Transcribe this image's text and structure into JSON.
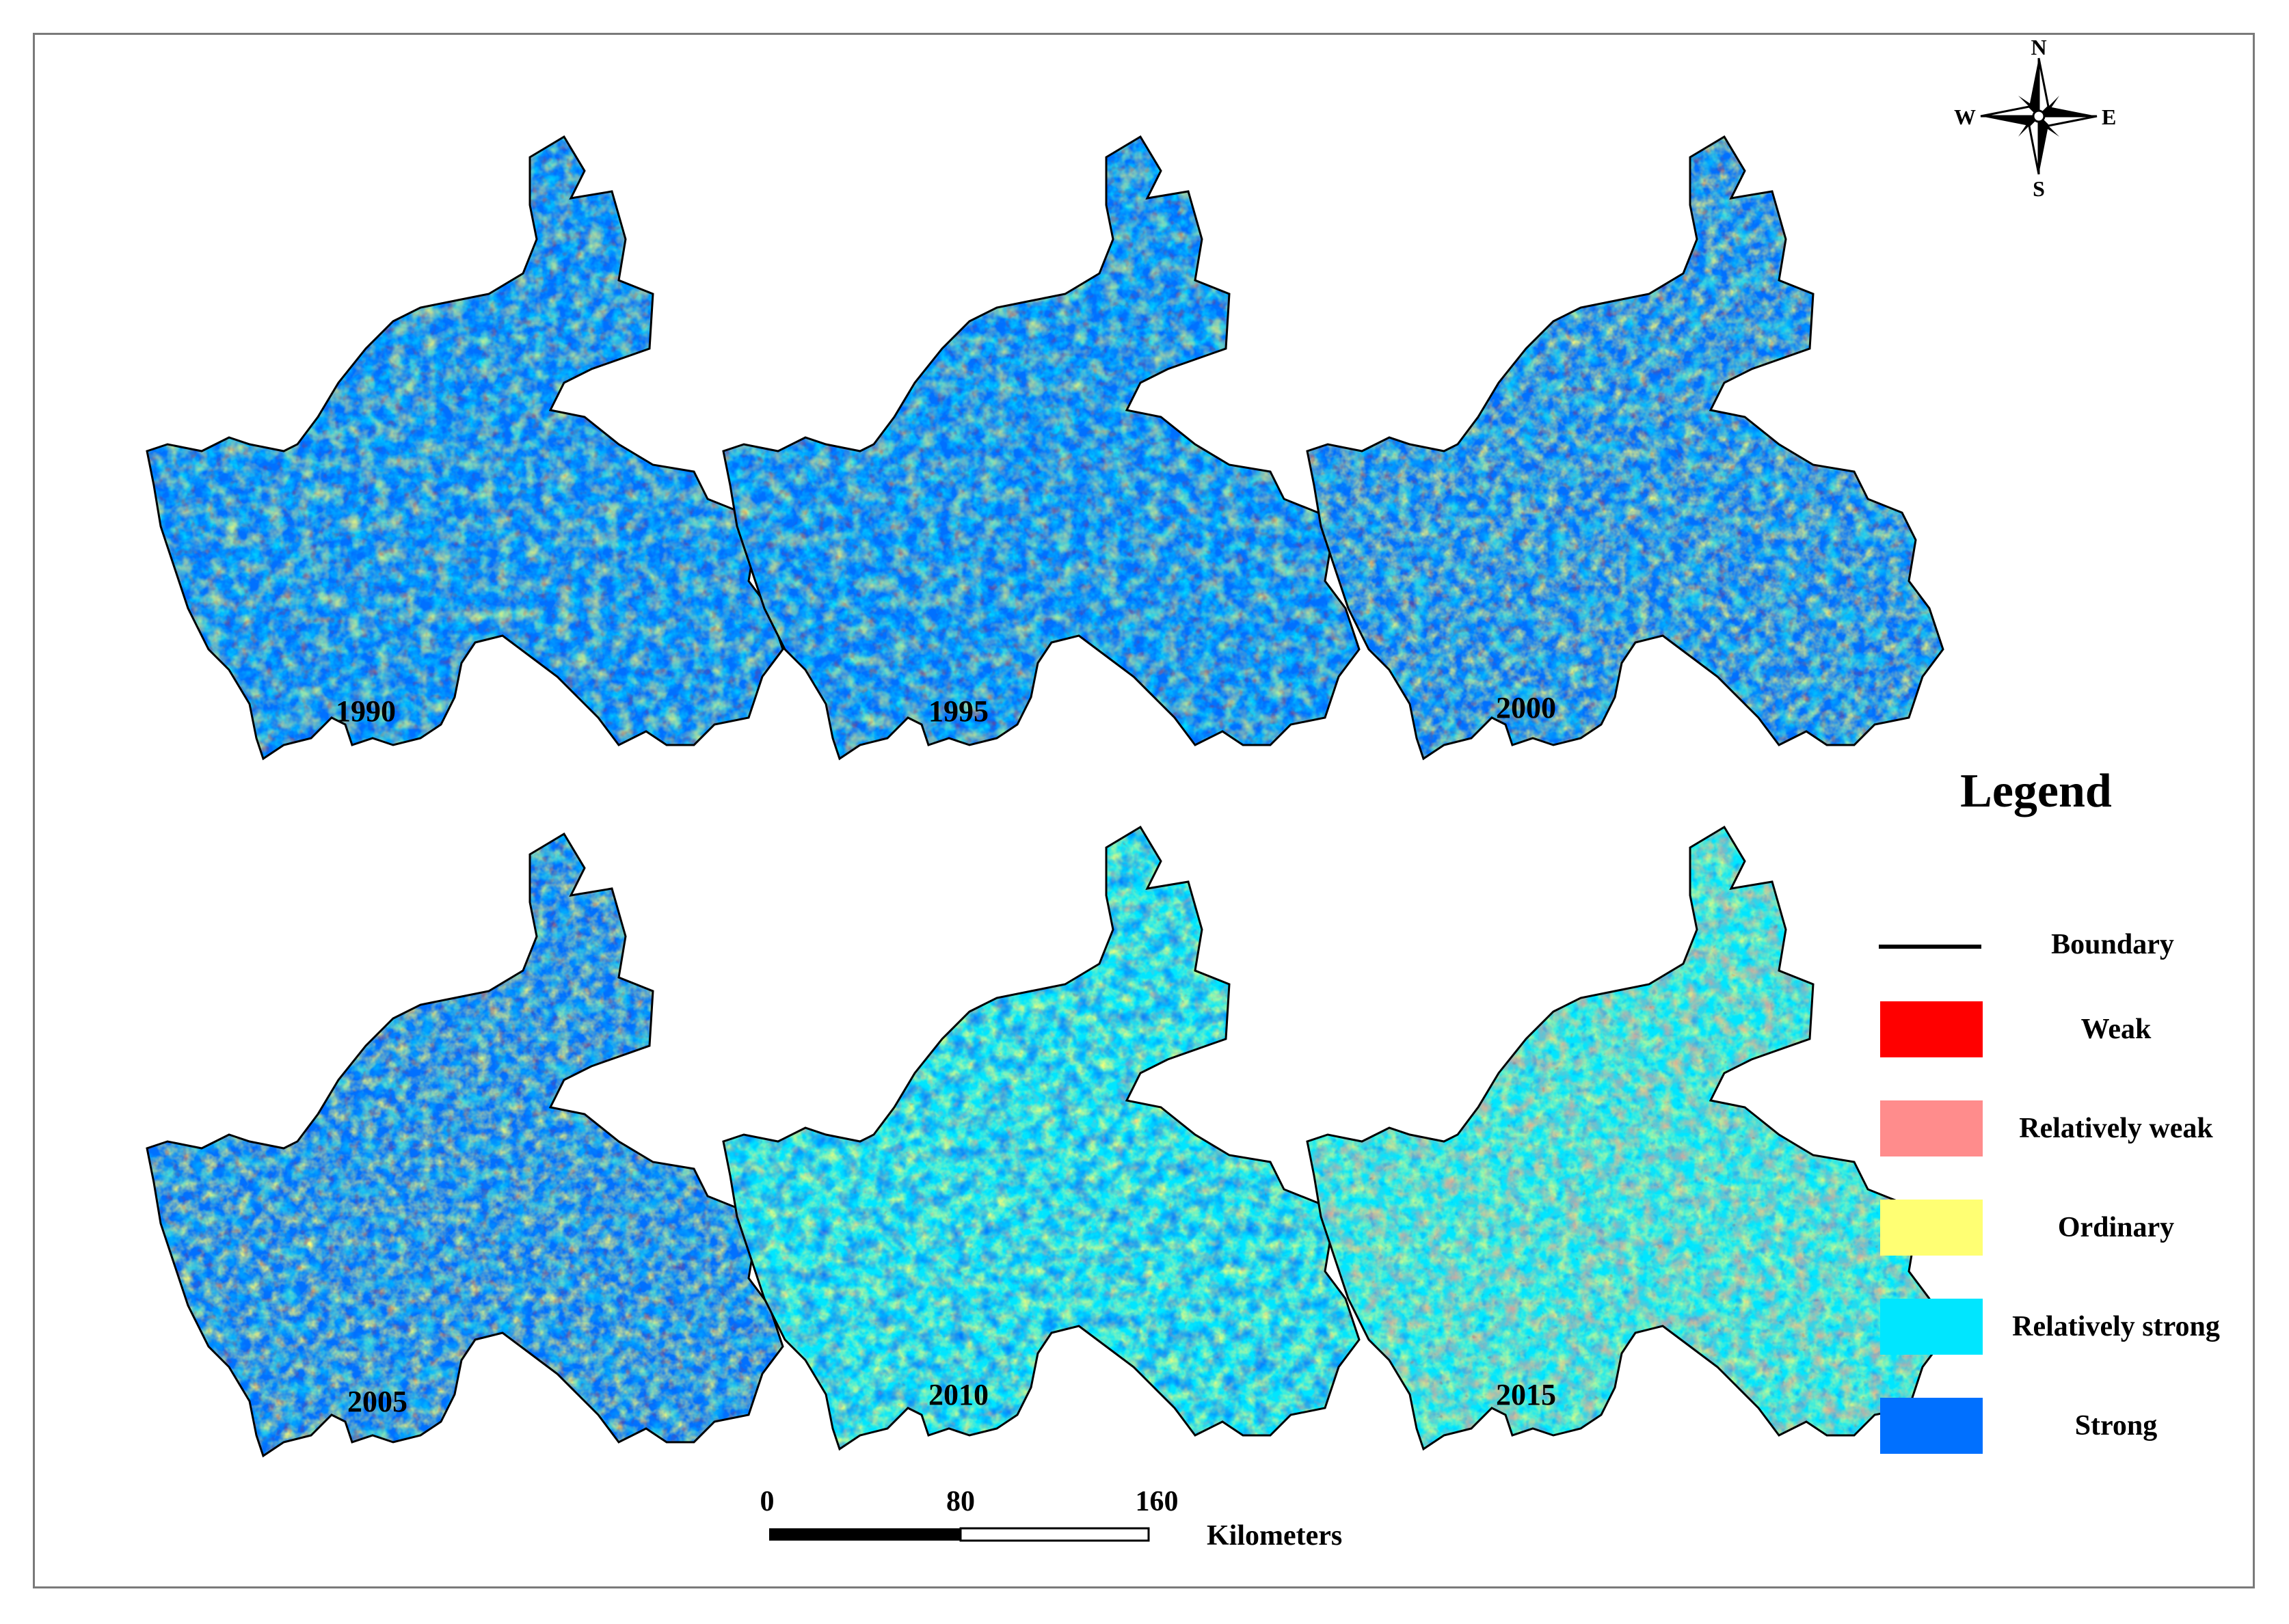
{
  "maps": [
    {
      "year": "1990",
      "palette": {
        "strong": 0.55,
        "rel_strong": 0.22,
        "ordinary": 0.21,
        "rel_weak": 0.0,
        "weak": 0.02
      }
    },
    {
      "year": "1995",
      "palette": {
        "strong": 0.48,
        "rel_strong": 0.32,
        "ordinary": 0.18,
        "rel_weak": 0.0,
        "weak": 0.02
      }
    },
    {
      "year": "2000",
      "palette": {
        "strong": 0.55,
        "rel_strong": 0.18,
        "ordinary": 0.25,
        "rel_weak": 0.0,
        "weak": 0.02
      }
    },
    {
      "year": "2005",
      "palette": {
        "strong": 0.55,
        "rel_strong": 0.13,
        "ordinary": 0.3,
        "rel_weak": 0.0,
        "weak": 0.02
      }
    },
    {
      "year": "2010",
      "palette": {
        "strong": 0.28,
        "rel_strong": 0.32,
        "ordinary": 0.3,
        "rel_weak": 0.08,
        "weak": 0.02
      }
    },
    {
      "year": "2015",
      "palette": {
        "strong": 0.1,
        "rel_strong": 0.5,
        "ordinary": 0.22,
        "rel_weak": 0.15,
        "weak": 0.03
      }
    }
  ],
  "legend": {
    "title": "Legend",
    "boundary_label": "Boundary",
    "items": [
      {
        "label": "Weak",
        "color": "#ff0000"
      },
      {
        "label": "Relatively weak",
        "color": "#ff8c8c"
      },
      {
        "label": "Ordinary",
        "color": "#ffff73"
      },
      {
        "label": "Relatively strong",
        "color": "#00e6ff"
      },
      {
        "label": "Strong",
        "color": "#0070ff"
      }
    ]
  },
  "scale_bar": {
    "ticks": [
      "0",
      "80",
      "160"
    ],
    "unit": "Kilometers"
  },
  "compass": {
    "n": "N",
    "s": "S",
    "e": "E",
    "w": "W"
  }
}
